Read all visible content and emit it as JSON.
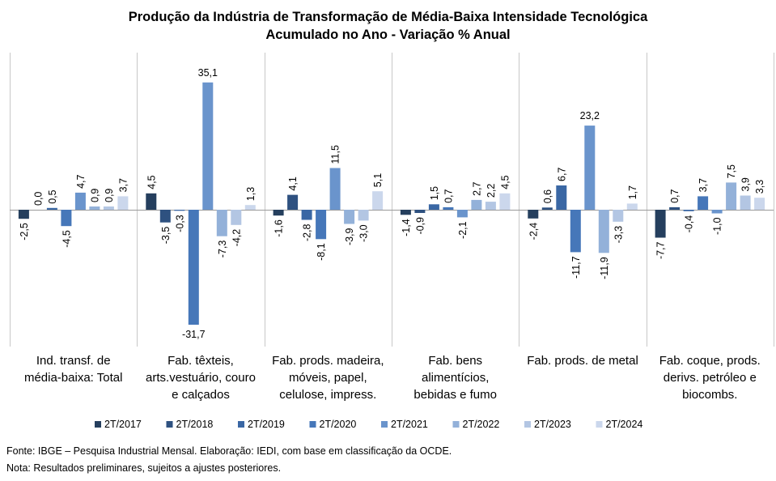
{
  "chart_data": {
    "type": "bar",
    "title": "Produção da Indústria de Transformação de Média-Baixa Intensidade Tecnológica",
    "subtitle": "Acumulado no Ano - Variação % Anual",
    "categories": [
      [
        "Ind. transf. de",
        "média-baixa: Total"
      ],
      [
        "Fab. têxteis,",
        "arts.vestuário, couro",
        "e calçados"
      ],
      [
        "Fab. prods. madeira,",
        "móveis, papel,",
        "celulose, impress."
      ],
      [
        "Fab. bens",
        "alimentícios,",
        "bebidas e fumo"
      ],
      [
        "Fab. prods. de metal"
      ],
      [
        "Fab. coque, prods.",
        "derivs. petróleo e",
        "biocombs."
      ]
    ],
    "series": [
      {
        "name": "2T/2017",
        "color": "#253f5e",
        "values": [
          -2.5,
          4.5,
          -1.6,
          -1.4,
          -2.4,
          -7.7
        ],
        "labels": [
          "-2,5",
          "4,5",
          "-1,6",
          "-1,4",
          "-2,4",
          "-7,7"
        ]
      },
      {
        "name": "2T/2018",
        "color": "#2e5180",
        "values": [
          0.0,
          -3.5,
          4.1,
          -0.9,
          0.6,
          0.7
        ],
        "labels": [
          "0,0",
          "-3,5",
          "4,1",
          "-0,9",
          "0,6",
          "0,7"
        ]
      },
      {
        "name": "2T/2019",
        "color": "#3a67a4",
        "values": [
          0.5,
          -0.3,
          -2.8,
          1.5,
          6.7,
          -0.4
        ],
        "labels": [
          "0,5",
          "-0,3",
          "-2,8",
          "1,5",
          "6,7",
          "-0,4"
        ]
      },
      {
        "name": "2T/2020",
        "color": "#4677b9",
        "values": [
          -4.5,
          -31.7,
          -8.1,
          0.7,
          -11.7,
          3.7
        ],
        "labels": [
          "-4,5",
          "-31,7",
          "-8,1",
          "0,7",
          "-11,7",
          "3,7"
        ]
      },
      {
        "name": "2T/2021",
        "color": "#6a94cc",
        "values": [
          4.7,
          35.1,
          11.5,
          -2.1,
          23.2,
          -1.0
        ],
        "labels": [
          "4,7",
          "35,1",
          "11,5",
          "-2,1",
          "23,2",
          "-1,0"
        ]
      },
      {
        "name": "2T/2022",
        "color": "#93b1d9",
        "values": [
          0.9,
          -7.3,
          -3.9,
          2.7,
          -11.9,
          7.5
        ],
        "labels": [
          "0,9",
          "-7,3",
          "-3,9",
          "2,7",
          "-11,9",
          "7,5"
        ]
      },
      {
        "name": "2T/2023",
        "color": "#b3c6e3",
        "values": [
          0.9,
          -4.2,
          -3.0,
          2.2,
          -3.3,
          3.9
        ],
        "labels": [
          "0,9",
          "-4,2",
          "-3,0",
          "2,2",
          "-3,3",
          "3,9"
        ]
      },
      {
        "name": "2T/2024",
        "color": "#cbd7ec",
        "values": [
          3.7,
          1.3,
          5.1,
          4.5,
          1.7,
          3.3
        ],
        "labels": [
          "3,7",
          "1,3",
          "5,1",
          "4,5",
          "1,7",
          "3,3"
        ]
      }
    ],
    "ylim": [
      -36,
      42
    ],
    "grid": false,
    "legend_position": "bottom"
  },
  "footnotes": {
    "source": "Fonte: IBGE – Pesquisa Industrial Mensal. Elaboração: IEDI, com base em classificação da OCDE.",
    "note": "Nota: Resultados preliminares, sujeitos a ajustes posteriores."
  }
}
